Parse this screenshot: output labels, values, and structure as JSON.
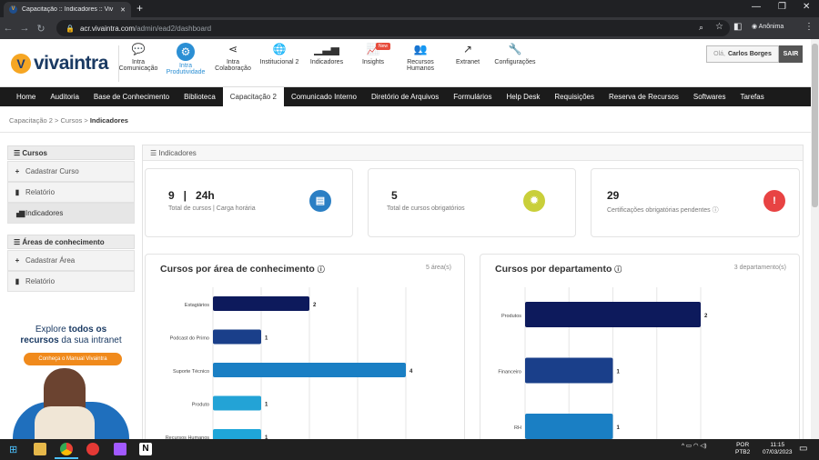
{
  "browser": {
    "tab_title": "Capacitação :: Indicadores :: Viv",
    "url_host": "acr.vivaintra.com",
    "url_path": "/admin/ead2/dashboard",
    "profile_label": "Anônima"
  },
  "header": {
    "logo_text": "vivaintra",
    "badge_new": "New",
    "icons": [
      {
        "label": "Intra\nComunicação",
        "icon": "chat-icon"
      },
      {
        "label": "Intra\nProdutividade",
        "icon": "gears-icon",
        "active": true
      },
      {
        "label": "Intra\nColaboração",
        "icon": "share-icon"
      },
      {
        "label": "Institucional 2",
        "icon": "globe-icon"
      },
      {
        "label": "Indicadores",
        "icon": "bar-chart-icon"
      },
      {
        "label": "Insights",
        "icon": "line-chart-icon"
      },
      {
        "label": "Recursos\nHumanos",
        "icon": "users-icon"
      },
      {
        "label": "Extranet",
        "icon": "external-link-icon"
      },
      {
        "label": "Configurações",
        "icon": "wrench-icon"
      }
    ],
    "greeting": "Olá,",
    "user_name": "Carlos Borges",
    "logout": "SAIR"
  },
  "menu": [
    "Home",
    "Auditoria",
    "Base de Conhecimento",
    "Biblioteca",
    "Capacitação 2",
    "Comunicado Interno",
    "Diretório de Arquivos",
    "Formulários",
    "Help Desk",
    "Requisições",
    "Reserva de Recursos",
    "Softwares",
    "Tarefas"
  ],
  "menu_active": "Capacitação 2",
  "breadcrumb": {
    "a": "Capacitação 2",
    "b": "Cursos",
    "current": "Indicadores"
  },
  "sidebar": {
    "cursos_title": "Cursos",
    "cursos_items": [
      "Cadastrar Curso",
      "Relatório",
      "Indicadores"
    ],
    "areas_title": "Áreas de conhecimento",
    "areas_items": [
      "Cadastrar Área",
      "Relatório"
    ]
  },
  "promo": {
    "line1a": "Explore ",
    "line1b": "todos os",
    "line2a": "recursos",
    "line2b": " da sua intranet",
    "button": "Conheça o Manual Vivaintra"
  },
  "panel_title": "Indicadores",
  "cards": [
    {
      "value": "9   |   24h",
      "label": "Total de cursos | Carga horária",
      "color": "#2b7fc4"
    },
    {
      "value": "5",
      "label": "Total de cursos obrigatórios",
      "color": "#c9cf3a"
    },
    {
      "value": "29",
      "label": "Certificações obrigatórias pendentes ⓘ",
      "color": "#e84343"
    }
  ],
  "chart_data": [
    {
      "type": "bar",
      "orientation": "horizontal",
      "title": "Cursos por área de conhecimento",
      "count_label": "5 área(s)",
      "categories": [
        "Estagiários",
        "Podcast do Primo",
        "Suporte Técnico",
        "Produto",
        "Recursos Humanos"
      ],
      "values": [
        2,
        1,
        4,
        1,
        1
      ],
      "colors": [
        "#0d1a5c",
        "#1a3f8a",
        "#1a7fc4",
        "#23a3d6",
        "#1fa6d9"
      ],
      "xlim": [
        0,
        4
      ]
    },
    {
      "type": "bar",
      "orientation": "horizontal",
      "title": "Cursos por departamento",
      "count_label": "3 departamento(s)",
      "categories": [
        "Produtos",
        "Financeiro",
        "RH"
      ],
      "values": [
        2,
        1,
        1
      ],
      "colors": [
        "#0d1a5c",
        "#1a3f8a",
        "#1a7fc4"
      ],
      "xlim": [
        0,
        2
      ]
    }
  ],
  "taskbar": {
    "lang1": "POR",
    "lang2": "PTB2",
    "time": "11:15",
    "date": "07/03/2023"
  }
}
